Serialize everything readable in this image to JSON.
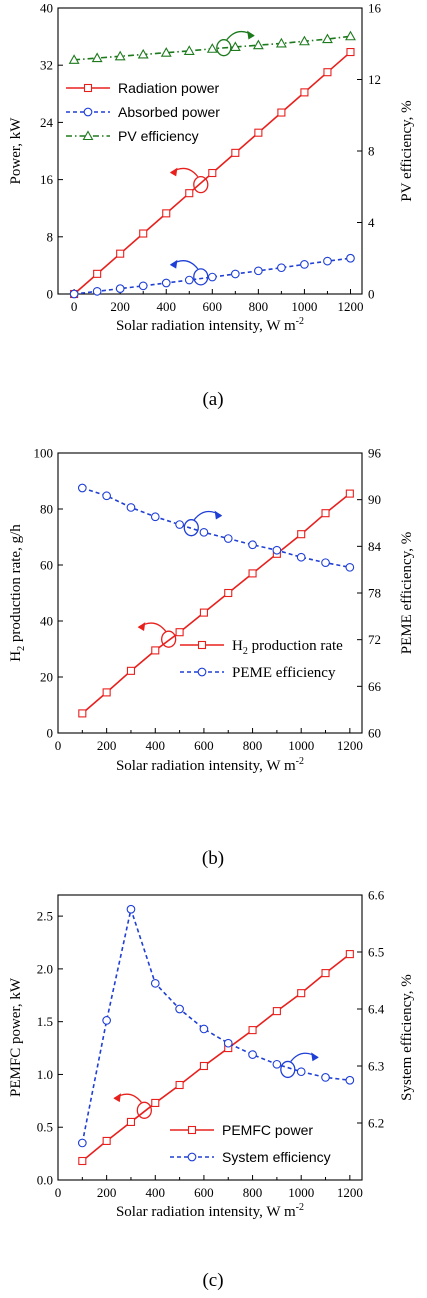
{
  "chart_data": [
    {
      "type": "line",
      "panel_label": "(a)",
      "xlabel": "Solar radiation intensity, W m",
      "xlabel_sup": "-2",
      "ylabel": "Power, kW",
      "y2label": "PV efficiency, %",
      "xlim": [
        -70,
        1250
      ],
      "ylim": [
        0,
        40
      ],
      "y2lim": [
        0,
        16
      ],
      "xticks": [
        0,
        200,
        400,
        600,
        800,
        1000,
        1200
      ],
      "yticks": [
        0,
        8,
        16,
        24,
        32,
        40
      ],
      "y2ticks": [
        0,
        4,
        8,
        12,
        16
      ],
      "legend_position": "top-left",
      "series": [
        {
          "name": "Radiation power",
          "axis": "left",
          "color": "#e8201d",
          "dash": "solid",
          "marker": "square",
          "x": [
            0,
            100,
            200,
            300,
            400,
            500,
            600,
            700,
            800,
            900,
            1000,
            1100,
            1200
          ],
          "y": [
            0,
            2.82,
            5.64,
            8.46,
            11.28,
            14.1,
            16.92,
            19.74,
            22.56,
            25.38,
            28.2,
            31.02,
            33.84
          ]
        },
        {
          "name": "Absorbed power",
          "axis": "left",
          "color": "#1f3fd6",
          "dash": "dash",
          "marker": "circle",
          "x": [
            0,
            100,
            200,
            300,
            400,
            500,
            600,
            700,
            800,
            900,
            1000,
            1100,
            1200
          ],
          "y": [
            0,
            0.37,
            0.75,
            1.14,
            1.54,
            1.95,
            2.37,
            2.8,
            3.24,
            3.68,
            4.14,
            4.6,
            5.0
          ]
        },
        {
          "name": "PV efficiency",
          "axis": "right",
          "color": "#1d7a1d",
          "dash": "dashdot",
          "marker": "triangle",
          "x": [
            0,
            100,
            200,
            300,
            400,
            500,
            600,
            700,
            800,
            900,
            1000,
            1100,
            1200
          ],
          "y": [
            13.1,
            13.2,
            13.3,
            13.4,
            13.5,
            13.6,
            13.72,
            13.82,
            13.92,
            14.02,
            14.14,
            14.26,
            14.42
          ]
        }
      ],
      "annotations": [
        {
          "at": [
            550,
            15.3
          ],
          "axis": "left",
          "toward": "left",
          "color": "#e8201d"
        },
        {
          "at": [
            550,
            2.4
          ],
          "axis": "left",
          "toward": "left",
          "color": "#1f3fd6"
        },
        {
          "at": [
            650,
            13.78
          ],
          "axis": "right",
          "toward": "right",
          "color": "#1d7a1d"
        }
      ]
    },
    {
      "type": "line",
      "panel_label": "(b)",
      "xlabel": "Solar radiation intensity, W m",
      "xlabel_sup": "-2",
      "ylabel": "H",
      "ylabel_sub": "2",
      "ylabel_rest": " production rate, g/h",
      "y2label": "PEME efficiency, %",
      "xlim": [
        0,
        1250
      ],
      "ylim": [
        0,
        100
      ],
      "y2lim": [
        60,
        96
      ],
      "xticks": [
        0,
        200,
        400,
        600,
        800,
        1000,
        1200
      ],
      "yticks": [
        0,
        20,
        40,
        60,
        80,
        100
      ],
      "y2ticks": [
        60,
        66,
        72,
        78,
        84,
        90,
        96
      ],
      "legend_position": "bottom-right",
      "series": [
        {
          "name": "H",
          "name_sub": "2",
          "name_rest": " production rate",
          "axis": "left",
          "color": "#e8201d",
          "dash": "solid",
          "marker": "square",
          "x": [
            100,
            200,
            300,
            400,
            500,
            600,
            700,
            800,
            900,
            1000,
            1100,
            1200
          ],
          "y": [
            7,
            14.5,
            22.2,
            29.5,
            36,
            43,
            50,
            57,
            64,
            71,
            78.5,
            85.5
          ]
        },
        {
          "name": "PEME efficiency",
          "axis": "right",
          "color": "#1f3fd6",
          "dash": "dash",
          "marker": "circle",
          "x": [
            100,
            200,
            300,
            400,
            500,
            600,
            700,
            800,
            900,
            1000,
            1100,
            1200
          ],
          "y": [
            91.5,
            90.5,
            89.0,
            87.8,
            86.8,
            85.8,
            85.0,
            84.2,
            83.5,
            82.6,
            81.9,
            81.3
          ]
        }
      ],
      "annotations": [
        {
          "at": [
            455,
            33.5
          ],
          "axis": "left",
          "toward": "left",
          "color": "#e8201d"
        },
        {
          "at": [
            548,
            86.4
          ],
          "axis": "right",
          "toward": "right",
          "color": "#1f3fd6"
        }
      ]
    },
    {
      "type": "line",
      "panel_label": "(c)",
      "xlabel": "Solar radiation intensity, W m",
      "xlabel_sup": "-2",
      "ylabel": "PEMFC power, kW",
      "y2label": "System efficiency, %",
      "xlim": [
        0,
        1250
      ],
      "ylim": [
        0,
        2.7
      ],
      "y2lim": [
        6.1,
        6.6
      ],
      "xticks": [
        0,
        200,
        400,
        600,
        800,
        1000,
        1200
      ],
      "yticks": [
        0.0,
        0.5,
        1.0,
        1.5,
        2.0,
        2.5
      ],
      "y2ticks": [
        6.2,
        6.3,
        6.4,
        6.5,
        6.6
      ],
      "legend_position": "bottom-right",
      "series": [
        {
          "name": "PEMFC power",
          "axis": "left",
          "color": "#e8201d",
          "dash": "solid",
          "marker": "square",
          "x": [
            100,
            200,
            300,
            400,
            500,
            600,
            700,
            800,
            900,
            1000,
            1100,
            1200
          ],
          "y": [
            0.18,
            0.37,
            0.55,
            0.73,
            0.9,
            1.08,
            1.25,
            1.42,
            1.6,
            1.77,
            1.96,
            2.14
          ]
        },
        {
          "name": "System efficiency",
          "axis": "right",
          "color": "#1f3fd6",
          "dash": "dash",
          "marker": "circle",
          "x": [
            100,
            200,
            300,
            400,
            500,
            600,
            700,
            800,
            900,
            1000,
            1100,
            1200
          ],
          "y": [
            6.165,
            6.38,
            6.575,
            6.445,
            6.4,
            6.365,
            6.34,
            6.32,
            6.303,
            6.29,
            6.28,
            6.275
          ]
        }
      ],
      "annotations": [
        {
          "at": [
            355,
            0.66
          ],
          "axis": "left",
          "toward": "left",
          "color": "#e8201d"
        },
        {
          "at": [
            945,
            6.294
          ],
          "axis": "right",
          "toward": "right",
          "color": "#1f3fd6"
        }
      ]
    }
  ]
}
